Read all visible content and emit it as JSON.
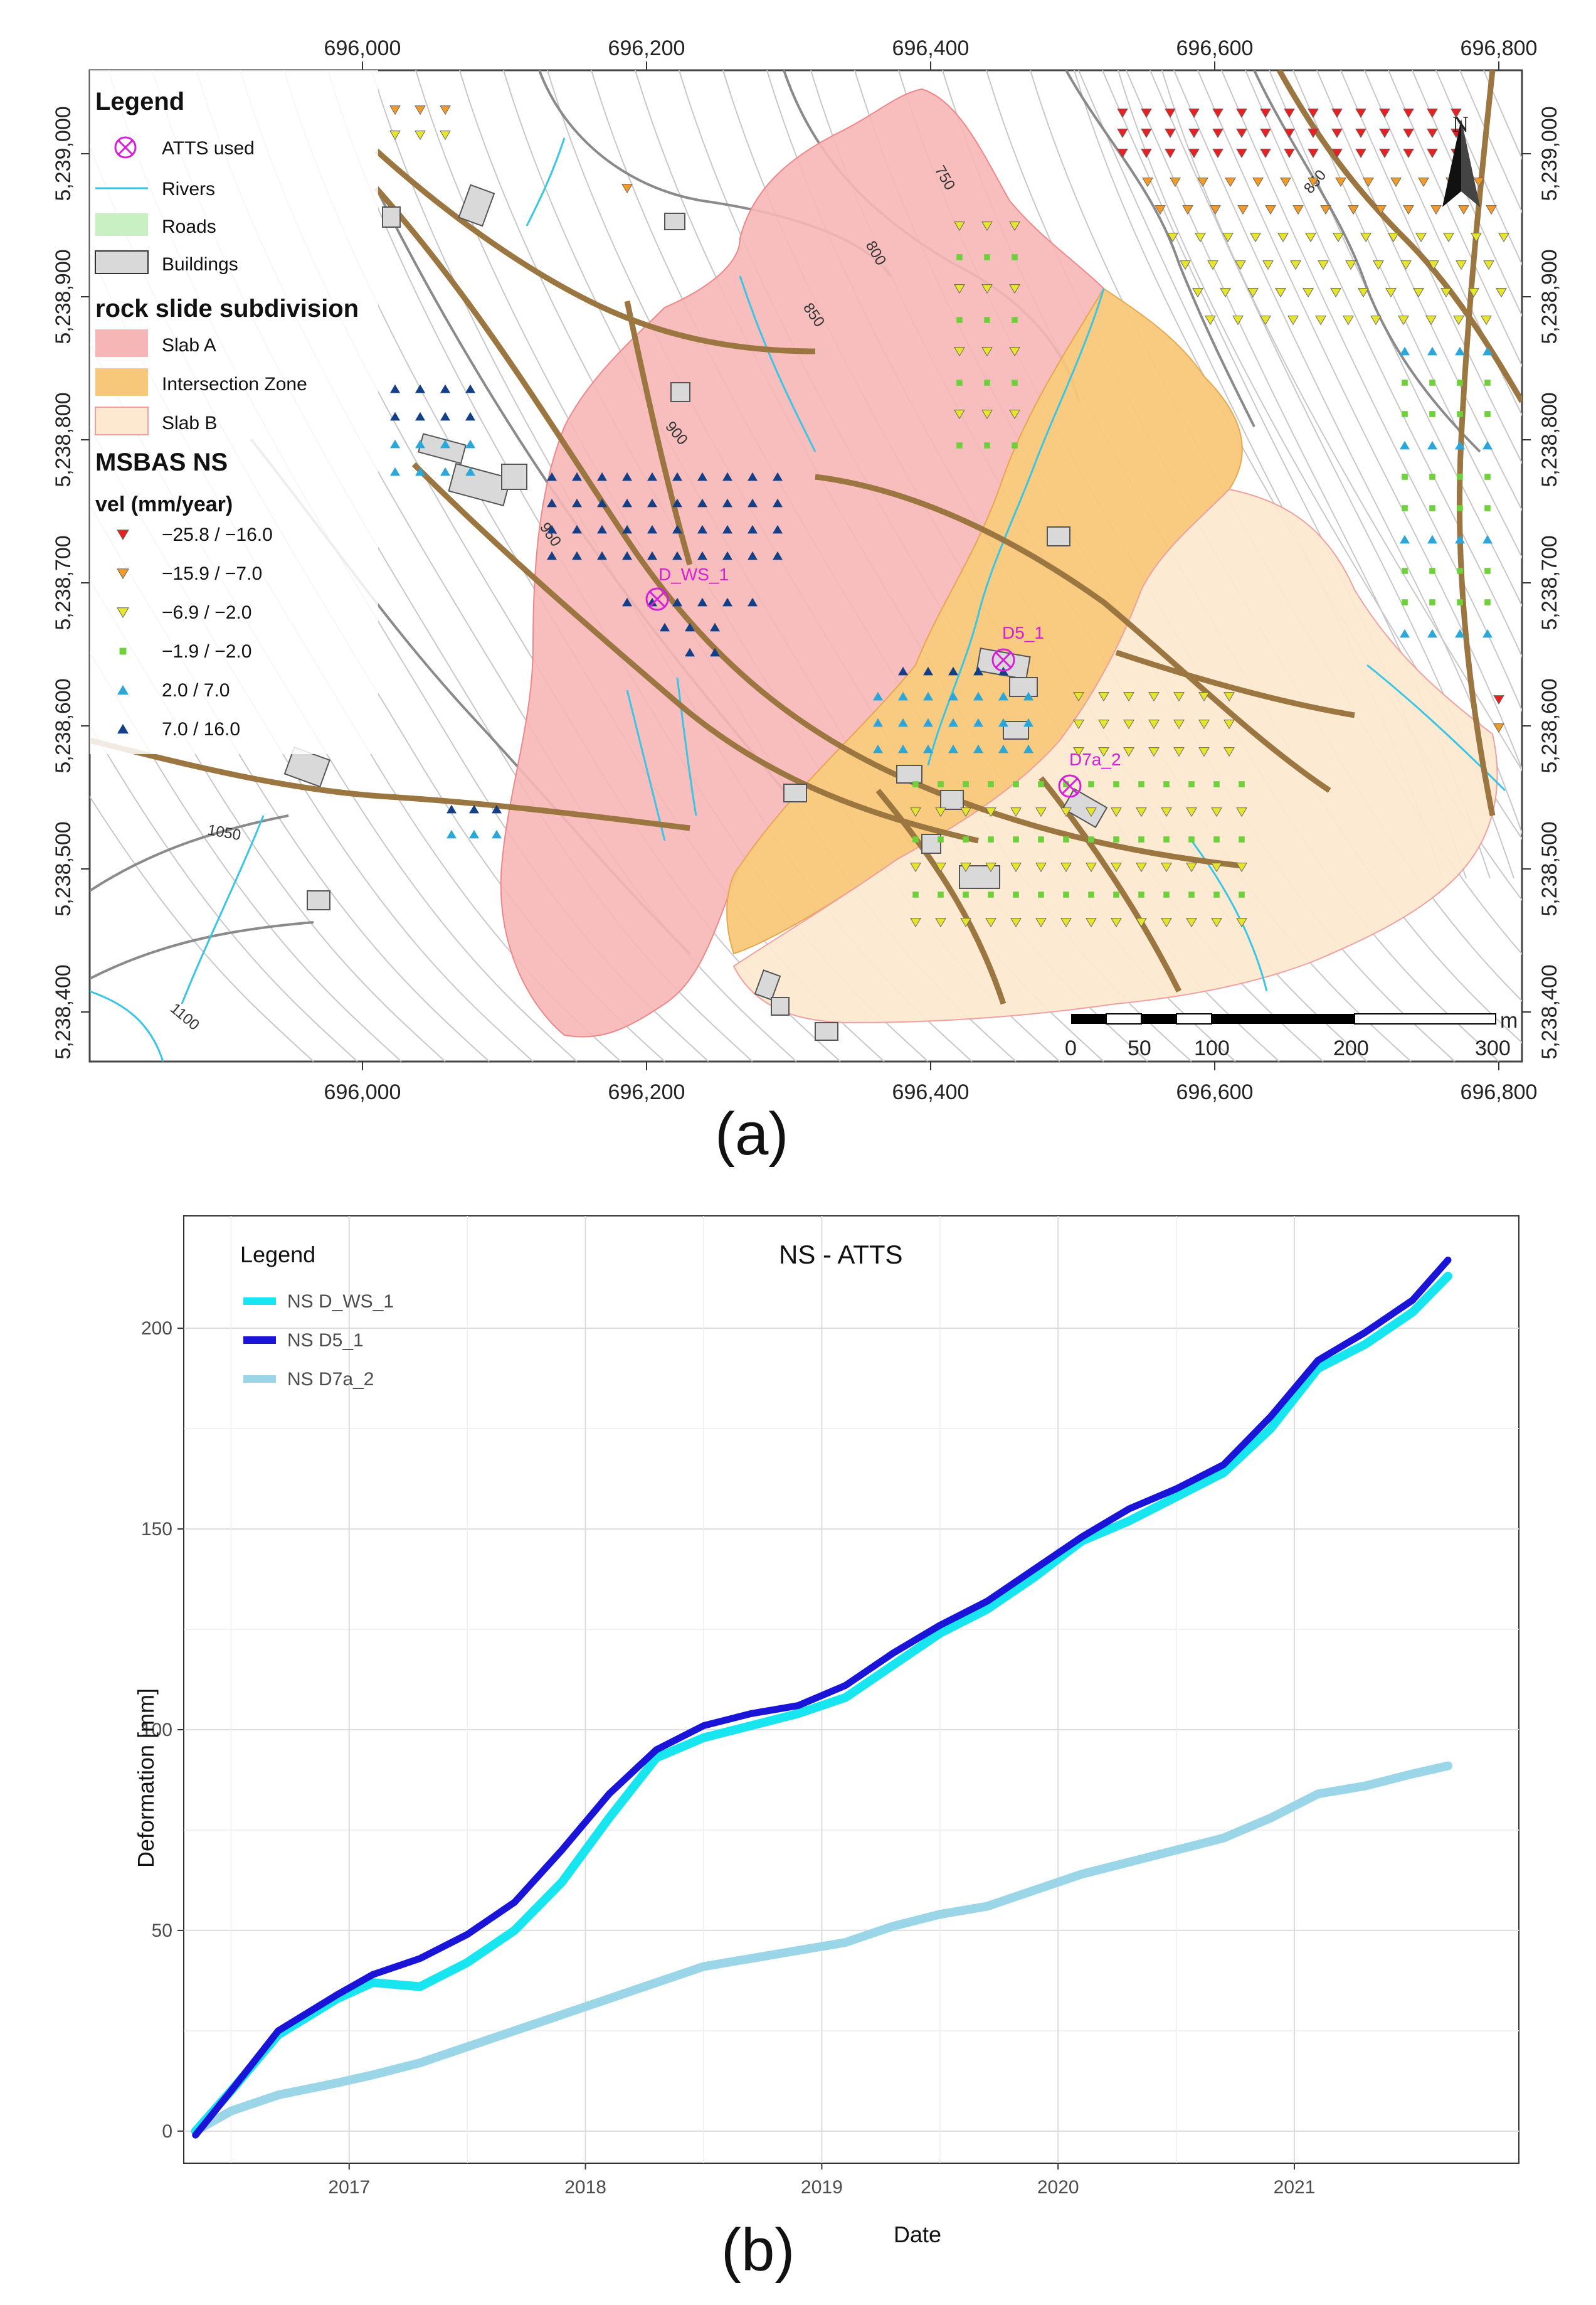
{
  "figure": {
    "caption_a": "(a)",
    "caption_b": "(b)"
  },
  "map": {
    "legend": {
      "title": "Legend",
      "items": [
        {
          "label": "ATTS used",
          "symbol": "atts-icon",
          "color": "#d61fd6"
        },
        {
          "label": "Rivers",
          "symbol": "river-line",
          "color": "#39c6e6"
        },
        {
          "label": "Roads",
          "symbol": "road-patch",
          "color": "#c9f0c3"
        },
        {
          "label": "Buildings",
          "symbol": "building-patch",
          "color": "#d9d9d9"
        }
      ],
      "subdivision_title": "rock slide subdivision",
      "subdivision": [
        {
          "label": "Slab A",
          "color": "#f7b6b6"
        },
        {
          "label": "Intersection Zone",
          "color": "#f8c87a"
        },
        {
          "label": "Slab B",
          "color": "#fde9d0"
        }
      ],
      "msbas_title": "MSBAS NS",
      "vel_title": "vel (mm/year)",
      "vel_classes": [
        {
          "label": "−25.8 / −16.0",
          "color": "#e8201e",
          "shape": "triangle-down"
        },
        {
          "label": "−15.9 / −7.0",
          "color": "#f29a28",
          "shape": "triangle-down"
        },
        {
          "label": "−6.9 / −2.0",
          "color": "#e7e52c",
          "shape": "triangle-down"
        },
        {
          "label": "−1.9 / −2.0",
          "color": "#6dd13a",
          "shape": "square"
        },
        {
          "label": "2.0 / 7.0",
          "color": "#2aa6d8",
          "shape": "triangle-up"
        },
        {
          "label": "7.0 / 16.0",
          "color": "#123f86",
          "shape": "triangle-up"
        }
      ]
    },
    "x_ticks": [
      "696,000",
      "696,200",
      "696,400",
      "696,600",
      "696,800"
    ],
    "y_ticks": [
      "5,239,000",
      "5,238,900",
      "5,238,800",
      "5,238,700",
      "5,238,600",
      "5,238,500",
      "5,238,400"
    ],
    "north_label": "N",
    "scalebar": {
      "unit": "m",
      "labels": [
        "0",
        "50",
        "100",
        "200",
        "300"
      ]
    },
    "contour_labels": [
      "750",
      "800",
      "850",
      "900",
      "950",
      "1050",
      "1100",
      "850"
    ],
    "atts_points": [
      {
        "label": "D_WS_1"
      },
      {
        "label": "D5_1"
      },
      {
        "label": "D7a_2"
      }
    ]
  },
  "chart_data": {
    "type": "line",
    "title": "NS - ATTS",
    "xlabel": "Date",
    "ylabel": "Deformation [mm]",
    "xlim": [
      2016.3,
      2021.95
    ],
    "ylim": [
      -8,
      228
    ],
    "x_ticks": [
      2017,
      2018,
      2019,
      2020,
      2021
    ],
    "x_tick_labels": [
      "2017",
      "2018",
      "2019",
      "2020",
      "2021"
    ],
    "y_ticks": [
      0,
      50,
      100,
      150,
      200
    ],
    "y_tick_labels": [
      "0",
      "50",
      "100",
      "150",
      "200"
    ],
    "legend_title": "Legend",
    "grid": true,
    "legend_position": "top-left",
    "series": [
      {
        "name": "NS D_WS_1",
        "color": "#17e6f0",
        "x": [
          2016.35,
          2016.5,
          2016.7,
          2016.95,
          2017.1,
          2017.3,
          2017.5,
          2017.7,
          2017.9,
          2018.1,
          2018.3,
          2018.5,
          2018.7,
          2018.9,
          2019.1,
          2019.3,
          2019.5,
          2019.7,
          2019.9,
          2020.1,
          2020.3,
          2020.5,
          2020.7,
          2020.9,
          2021.1,
          2021.3,
          2021.5,
          2021.65
        ],
        "y": [
          0,
          10,
          24,
          33,
          37,
          36,
          42,
          50,
          62,
          78,
          93,
          98,
          101,
          104,
          108,
          116,
          124,
          130,
          138,
          147,
          152,
          158,
          164,
          175,
          190,
          196,
          204,
          213
        ]
      },
      {
        "name": "NS D5_1",
        "color": "#1a14d9",
        "x": [
          2016.35,
          2016.5,
          2016.7,
          2016.95,
          2017.1,
          2017.3,
          2017.5,
          2017.7,
          2017.9,
          2018.1,
          2018.3,
          2018.5,
          2018.7,
          2018.9,
          2019.1,
          2019.3,
          2019.5,
          2019.7,
          2019.9,
          2020.1,
          2020.3,
          2020.5,
          2020.7,
          2020.9,
          2021.1,
          2021.3,
          2021.5,
          2021.65
        ],
        "y": [
          -1,
          10,
          25,
          34,
          39,
          43,
          49,
          57,
          70,
          84,
          95,
          101,
          104,
          106,
          111,
          119,
          126,
          132,
          140,
          148,
          155,
          160,
          166,
          178,
          192,
          199,
          207,
          217
        ]
      },
      {
        "name": "NS D7a_2",
        "color": "#9ad6e8",
        "x": [
          2016.35,
          2016.5,
          2016.7,
          2016.95,
          2017.1,
          2017.3,
          2017.5,
          2017.7,
          2017.9,
          2018.1,
          2018.3,
          2018.5,
          2018.7,
          2018.9,
          2019.1,
          2019.3,
          2019.5,
          2019.7,
          2019.9,
          2020.1,
          2020.3,
          2020.5,
          2020.7,
          2020.9,
          2021.1,
          2021.3,
          2021.5,
          2021.65
        ],
        "y": [
          0,
          5,
          9,
          12,
          14,
          17,
          21,
          25,
          29,
          33,
          37,
          41,
          43,
          45,
          47,
          51,
          54,
          56,
          60,
          64,
          67,
          70,
          73,
          78,
          84,
          86,
          89,
          91
        ]
      }
    ]
  }
}
